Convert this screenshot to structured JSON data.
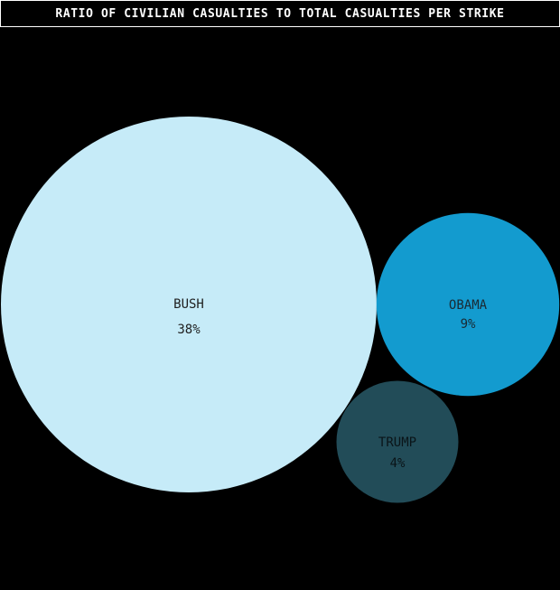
{
  "chart_data": {
    "type": "bubble",
    "title": "RATIO OF CIVILIAN CASUALTIES TO TOTAL CASUALTIES PER STRIKE",
    "items": [
      {
        "name": "BUSH",
        "value": 38,
        "display": "38%",
        "color": "#c6ebf8",
        "text_color": "#1f1f1f"
      },
      {
        "name": "OBAMA",
        "value": 9,
        "display": "9%",
        "color": "#139bcf",
        "text_color": "#1a2a33"
      },
      {
        "name": "TRUMP",
        "value": 4,
        "display": "4%",
        "color": "#224c58",
        "text_color": "#0a1418"
      }
    ],
    "background": "#000000"
  }
}
